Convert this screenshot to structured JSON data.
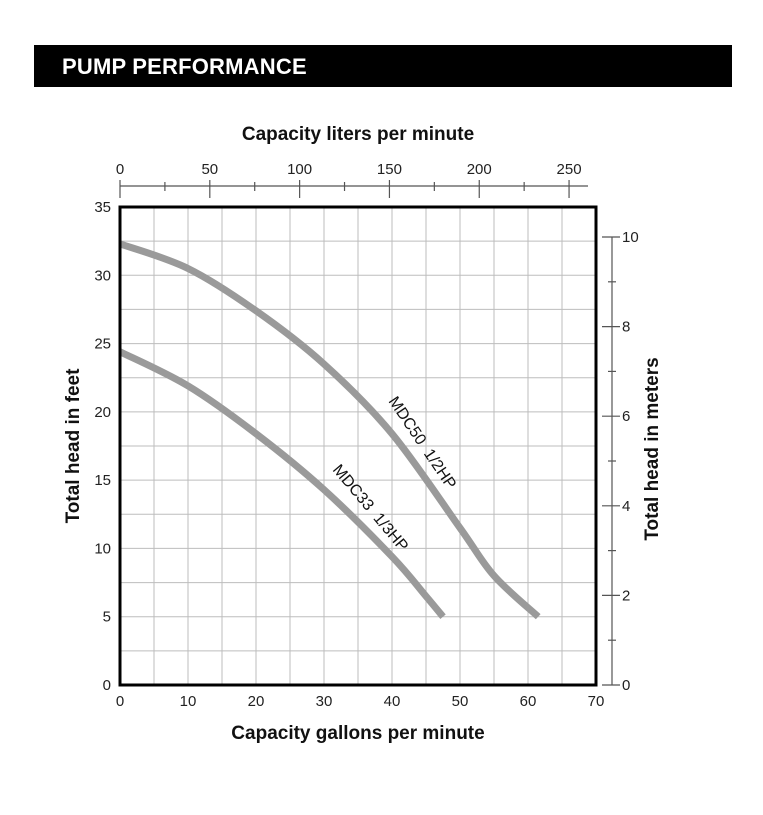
{
  "header": {
    "title": "PUMP PERFORMANCE",
    "bar_color": "#000000",
    "text_color": "#ffffff"
  },
  "chart_data": {
    "type": "line",
    "title": "PUMP PERFORMANCE",
    "xlabel": "Capacity gallons per minute",
    "ylabel": "Total head in feet",
    "x2label": "Capacity liters per minute",
    "y2label": "Total head in meters",
    "xlim": [
      0,
      70
    ],
    "ylim": [
      0,
      35
    ],
    "x2lim": [
      0,
      265
    ],
    "y2lim": [
      0,
      10.67
    ],
    "x_ticks": [
      0,
      10,
      20,
      30,
      40,
      50,
      60,
      70
    ],
    "y_ticks": [
      0,
      5,
      10,
      15,
      20,
      25,
      30,
      35
    ],
    "x2_ticks": [
      0,
      50,
      100,
      150,
      200,
      250
    ],
    "y2_ticks": [
      0,
      2,
      4,
      6,
      8,
      10
    ],
    "x_tick_labels": [
      "0",
      "10",
      "20",
      "30",
      "40",
      "50",
      "60",
      "70"
    ],
    "y_tick_labels": [
      "0",
      "5",
      "10",
      "15",
      "20",
      "25",
      "30",
      "35"
    ],
    "x2_tick_labels": [
      "0",
      "50",
      "100",
      "150",
      "200",
      "250"
    ],
    "y2_tick_labels": [
      "0",
      "2",
      "4",
      "6",
      "8",
      "10"
    ],
    "grid": true,
    "curve_color": "#9a9a9a",
    "grid_color": "#bdbdbd",
    "series": [
      {
        "name": "MDC50  1/2HP",
        "x": [
          0,
          10,
          20,
          30,
          40,
          50,
          55,
          61.5
        ],
        "y": [
          32.3,
          30.5,
          27.4,
          23.5,
          18.4,
          11.5,
          8.0,
          5.0
        ]
      },
      {
        "name": "MDC33  1/3HP",
        "x": [
          0,
          10,
          20,
          30,
          40,
          45,
          47.5
        ],
        "y": [
          24.4,
          21.9,
          18.4,
          14.3,
          9.4,
          6.5,
          5.0
        ]
      }
    ]
  }
}
